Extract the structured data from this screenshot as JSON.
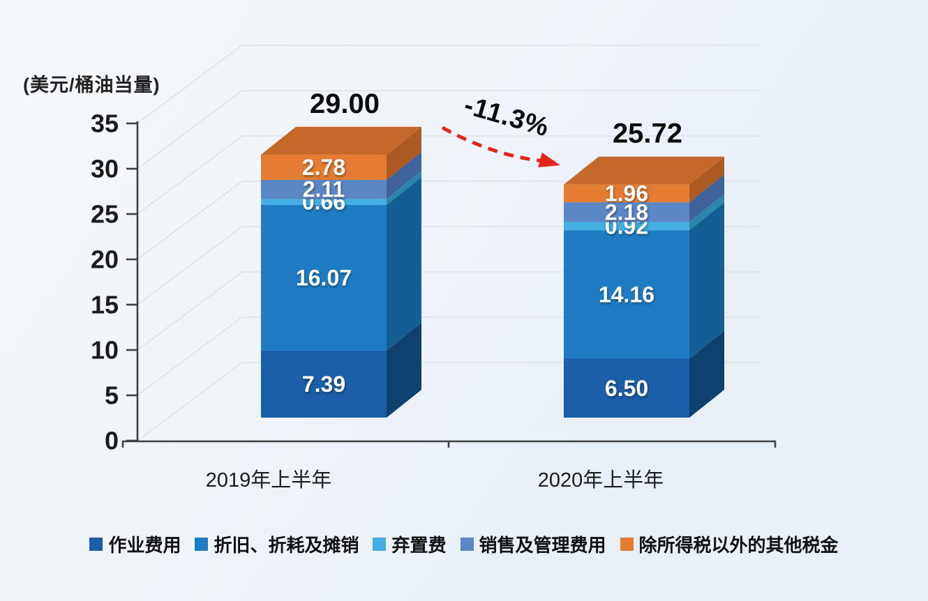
{
  "chart_data": {
    "type": "bar",
    "subtype": "stacked-3d-column",
    "unit": "(美元/桶油当量)",
    "categories": [
      "2019年上半年",
      "2020年上半年"
    ],
    "series": [
      {
        "name": "作业费用",
        "color": "#1A5FA8",
        "side_color": "#0F416F",
        "values": [
          7.39,
          6.5
        ]
      },
      {
        "name": "折旧、折耗及摊销",
        "color": "#1F7CC2",
        "side_color": "#135E95",
        "values": [
          16.07,
          14.16
        ]
      },
      {
        "name": "弃置费",
        "color": "#45AEE3",
        "side_color": "#2B86AC",
        "values": [
          0.66,
          0.92
        ]
      },
      {
        "name": "销售及管理费用",
        "color": "#5C87C5",
        "side_color": "#3F639B",
        "values": [
          2.11,
          2.18
        ]
      },
      {
        "name": "除所得税以外的其他税金",
        "color": "#E47C33",
        "side_color": "#AC5922",
        "top_color": "#C4692B",
        "values": [
          2.78,
          1.96
        ]
      }
    ],
    "totals": [
      29.0,
      25.72
    ],
    "totals_display": [
      "29.00",
      "25.72"
    ],
    "change_annotation": "-11.3%",
    "annotation_arrow_color": "#E3241F",
    "y_axis": {
      "min": 0,
      "max": 35,
      "step": 5,
      "ticks": [
        "35",
        "30",
        "25",
        "20",
        "15",
        "10",
        "5",
        "0"
      ]
    },
    "grid": true,
    "legend_position": "bottom"
  }
}
